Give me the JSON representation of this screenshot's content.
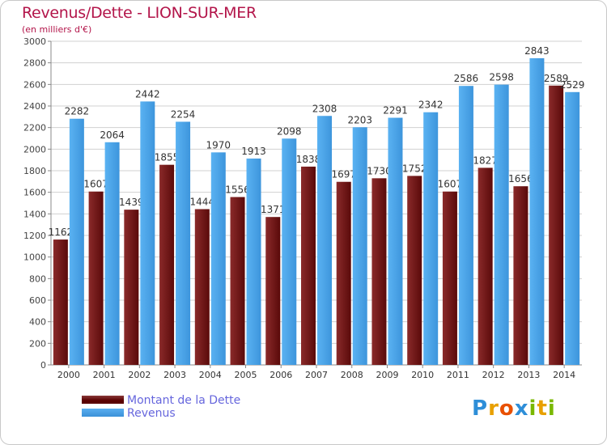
{
  "header": {
    "title": "Revenus/Dette - LION-SUR-MER",
    "subtitle": "(en milliers d'€)"
  },
  "colors": {
    "debt": "#6b0f0f",
    "revenue": "#4aa3e8",
    "grid": "#d0d0d0",
    "title": "#b3154a",
    "legend_text": "#6666dd"
  },
  "chart_data": {
    "type": "bar",
    "title": "Revenus/Dette - LION-SUR-MER",
    "subtitle": "(en milliers d'€)",
    "categories": [
      "2000",
      "2001",
      "2002",
      "2003",
      "2004",
      "2005",
      "2006",
      "2007",
      "2008",
      "2009",
      "2010",
      "2011",
      "2012",
      "2013",
      "2014"
    ],
    "series": [
      {
        "name": "Montant de la Dette",
        "values": [
          1162,
          1607,
          1439,
          1855,
          1444,
          1556,
          1371,
          1838,
          1697,
          1730,
          1752,
          1607,
          1827,
          1656,
          2589
        ],
        "labels": [
          "1162",
          "1607",
          "1439",
          "1855",
          "1444",
          "1556",
          "1371",
          "1838",
          "1697",
          "1730",
          "1752",
          "1607",
          "1827",
          "1656",
          "2589"
        ]
      },
      {
        "name": "Revenus",
        "values": [
          2282,
          2064,
          2442,
          2254,
          1970,
          1913,
          2098,
          2308,
          2203,
          2291,
          2342,
          2586,
          2598,
          2843,
          2529
        ],
        "labels": [
          "2282",
          "2064",
          "2442",
          "2254",
          "1970",
          "1913",
          "2098",
          "2308",
          "2203",
          "2291",
          "2342",
          "2586",
          "2598",
          "2843",
          "2529"
        ]
      }
    ],
    "ylim": [
      0,
      3000
    ],
    "ytick_step": 200,
    "grid": true,
    "legend_position": "bottom-left"
  },
  "legend": {
    "items": [
      {
        "label": "Montant de la Dette",
        "key": "debt"
      },
      {
        "label": "Revenus",
        "key": "rev"
      }
    ]
  },
  "logo": {
    "letters": [
      {
        "ch": "P",
        "color": "#2e8ed8"
      },
      {
        "ch": "r",
        "color": "#e8a000"
      },
      {
        "ch": "o",
        "color": "#e85000"
      },
      {
        "ch": "x",
        "color": "#2e8ed8"
      },
      {
        "ch": "i",
        "color": "#7ab800"
      },
      {
        "ch": "t",
        "color": "#e8a000"
      },
      {
        "ch": "i",
        "color": "#7ab800"
      }
    ]
  }
}
